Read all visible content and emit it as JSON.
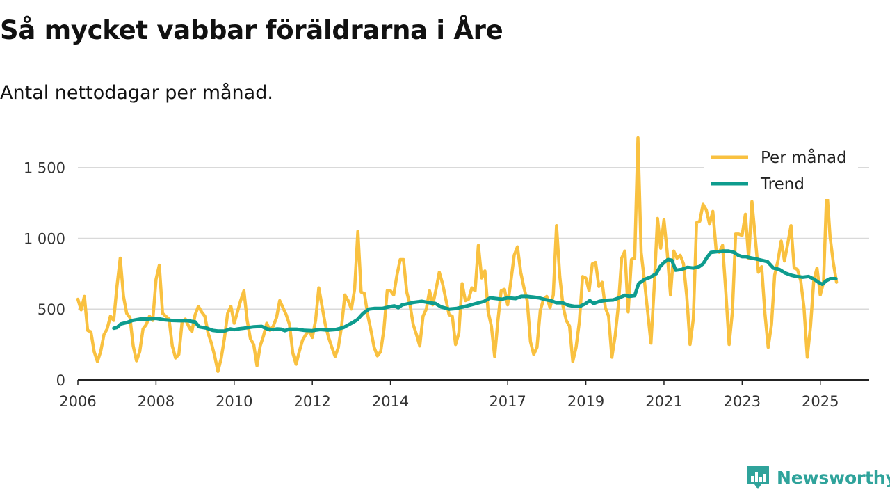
{
  "header": {
    "title": "Så mycket vabbar föräldrarna i Åre",
    "subtitle": "Antal nettodagar per månad."
  },
  "brand": {
    "name": "Newsworthy",
    "color": "#2fa39b"
  },
  "colors": {
    "per_month": "#f9c140",
    "trend": "#0e9c8e",
    "grid": "#d9d9d9",
    "axis": "#222222"
  },
  "chart_data": {
    "type": "line",
    "title": "Så mycket vabbar föräldrarna i Åre",
    "subtitle": "Antal nettodagar per månad.",
    "xlabel": "",
    "ylabel": "",
    "xlim": [
      2006.0,
      2026.25
    ],
    "ylim": [
      0,
      1700
    ],
    "x_ticks": [
      {
        "value": 2006,
        "label": "2006"
      },
      {
        "value": 2008,
        "label": "2008"
      },
      {
        "value": 2010,
        "label": "2010"
      },
      {
        "value": 2012,
        "label": "2012"
      },
      {
        "value": 2014,
        "label": "2014"
      },
      {
        "value": 2017,
        "label": "2017"
      },
      {
        "value": 2019,
        "label": "2019"
      },
      {
        "value": 2021,
        "label": "2021"
      },
      {
        "value": 2023,
        "label": "2023"
      },
      {
        "value": 2025,
        "label": "2025"
      }
    ],
    "y_ticks": [
      {
        "value": 0,
        "label": "0"
      },
      {
        "value": 500,
        "label": "500"
      },
      {
        "value": 1000,
        "label": "1 000"
      },
      {
        "value": 1500,
        "label": "1 500"
      }
    ],
    "grid": true,
    "legend_position": "top-right",
    "series": [
      {
        "name": "Per månad",
        "color": "#f9c140",
        "x_start": 2006.0,
        "step": 0.08333,
        "values": [
          570,
          495,
          590,
          350,
          340,
          200,
          130,
          200,
          320,
          360,
          450,
          420,
          660,
          860,
          590,
          470,
          440,
          240,
          135,
          200,
          360,
          390,
          450,
          420,
          710,
          810,
          470,
          450,
          430,
          240,
          155,
          180,
          410,
          430,
          380,
          340,
          460,
          520,
          480,
          450,
          330,
          260,
          170,
          60,
          150,
          290,
          470,
          520,
          400,
          480,
          560,
          630,
          420,
          290,
          250,
          100,
          240,
          310,
          400,
          350,
          380,
          440,
          560,
          510,
          460,
          390,
          190,
          110,
          200,
          280,
          320,
          350,
          300,
          420,
          650,
          520,
          390,
          300,
          230,
          165,
          230,
          380,
          600,
          560,
          500,
          640,
          1050,
          620,
          610,
          460,
          350,
          230,
          170,
          200,
          360,
          630,
          630,
          600,
          740,
          850,
          850,
          620,
          530,
          390,
          320,
          240,
          450,
          500,
          630,
          530,
          640,
          760,
          680,
          570,
          460,
          450,
          250,
          330,
          680,
          560,
          570,
          650,
          630,
          950,
          720,
          770,
          480,
          380,
          165,
          420,
          630,
          640,
          530,
          700,
          880,
          940,
          760,
          650,
          560,
          270,
          180,
          230,
          490,
          570,
          590,
          510,
          600,
          1090,
          730,
          520,
          420,
          380,
          130,
          230,
          410,
          730,
          720,
          630,
          820,
          830,
          660,
          690,
          510,
          450,
          160,
          310,
          530,
          860,
          910,
          480,
          850,
          860,
          1710,
          900,
          700,
          480,
          260,
          660,
          1140,
          930,
          1130,
          900,
          600,
          910,
          860,
          880,
          820,
          590,
          250,
          430,
          1110,
          1120,
          1240,
          1200,
          1100,
          1190,
          920,
          900,
          950,
          620,
          250,
          480,
          1030,
          1030,
          1020,
          1170,
          860,
          1260,
          1010,
          760,
          800,
          470,
          230,
          390,
          740,
          840,
          980,
          840,
          960,
          1090,
          790,
          780,
          700,
          510,
          160,
          380,
          700,
          790,
          600,
          690,
          1350,
          1010,
          830,
          690
        ]
      },
      {
        "name": "Trend",
        "color": "#0e9c8e",
        "points": [
          [
            2006.92,
            365
          ],
          [
            2007.0,
            370
          ],
          [
            2007.1,
            395
          ],
          [
            2007.25,
            405
          ],
          [
            2007.4,
            420
          ],
          [
            2007.6,
            430
          ],
          [
            2007.8,
            430
          ],
          [
            2008.0,
            435
          ],
          [
            2008.2,
            425
          ],
          [
            2008.4,
            420
          ],
          [
            2008.6,
            418
          ],
          [
            2008.8,
            418
          ],
          [
            2009.0,
            410
          ],
          [
            2009.1,
            375
          ],
          [
            2009.3,
            365
          ],
          [
            2009.45,
            350
          ],
          [
            2009.6,
            345
          ],
          [
            2009.75,
            345
          ],
          [
            2009.9,
            360
          ],
          [
            2010.0,
            355
          ],
          [
            2010.1,
            360
          ],
          [
            2010.25,
            365
          ],
          [
            2010.5,
            375
          ],
          [
            2010.7,
            378
          ],
          [
            2010.85,
            360
          ],
          [
            2011.0,
            355
          ],
          [
            2011.1,
            360
          ],
          [
            2011.2,
            358
          ],
          [
            2011.3,
            348
          ],
          [
            2011.4,
            358
          ],
          [
            2011.6,
            358
          ],
          [
            2011.8,
            350
          ],
          [
            2012.0,
            348
          ],
          [
            2012.2,
            356
          ],
          [
            2012.4,
            352
          ],
          [
            2012.6,
            356
          ],
          [
            2012.8,
            370
          ],
          [
            2013.0,
            400
          ],
          [
            2013.15,
            425
          ],
          [
            2013.3,
            470
          ],
          [
            2013.45,
            500
          ],
          [
            2013.6,
            505
          ],
          [
            2013.8,
            505
          ],
          [
            2014.0,
            518
          ],
          [
            2014.1,
            523
          ],
          [
            2014.2,
            510
          ],
          [
            2014.3,
            530
          ],
          [
            2014.4,
            535
          ],
          [
            2014.6,
            548
          ],
          [
            2014.8,
            555
          ],
          [
            2015.0,
            545
          ],
          [
            2015.15,
            540
          ],
          [
            2015.3,
            515
          ],
          [
            2015.5,
            500
          ],
          [
            2015.7,
            505
          ],
          [
            2015.85,
            515
          ],
          [
            2016.0,
            525
          ],
          [
            2016.2,
            540
          ],
          [
            2016.4,
            555
          ],
          [
            2016.55,
            580
          ],
          [
            2016.7,
            575
          ],
          [
            2016.85,
            570
          ],
          [
            2017.0,
            580
          ],
          [
            2017.2,
            575
          ],
          [
            2017.35,
            590
          ],
          [
            2017.5,
            590
          ],
          [
            2017.65,
            585
          ],
          [
            2017.8,
            580
          ],
          [
            2017.95,
            568
          ],
          [
            2018.1,
            560
          ],
          [
            2018.25,
            545
          ],
          [
            2018.4,
            545
          ],
          [
            2018.55,
            527
          ],
          [
            2018.7,
            520
          ],
          [
            2018.85,
            520
          ],
          [
            2019.0,
            540
          ],
          [
            2019.1,
            560
          ],
          [
            2019.2,
            540
          ],
          [
            2019.35,
            555
          ],
          [
            2019.5,
            562
          ],
          [
            2019.7,
            565
          ],
          [
            2019.85,
            580
          ],
          [
            2020.0,
            598
          ],
          [
            2020.1,
            590
          ],
          [
            2020.25,
            595
          ],
          [
            2020.35,
            680
          ],
          [
            2020.5,
            710
          ],
          [
            2020.65,
            725
          ],
          [
            2020.8,
            750
          ],
          [
            2020.9,
            800
          ],
          [
            2021.0,
            830
          ],
          [
            2021.1,
            850
          ],
          [
            2021.2,
            845
          ],
          [
            2021.3,
            775
          ],
          [
            2021.45,
            780
          ],
          [
            2021.6,
            795
          ],
          [
            2021.75,
            790
          ],
          [
            2021.9,
            800
          ],
          [
            2022.0,
            820
          ],
          [
            2022.1,
            865
          ],
          [
            2022.2,
            900
          ],
          [
            2022.35,
            905
          ],
          [
            2022.5,
            910
          ],
          [
            2022.65,
            910
          ],
          [
            2022.8,
            900
          ],
          [
            2022.9,
            880
          ],
          [
            2023.0,
            870
          ],
          [
            2023.1,
            870
          ],
          [
            2023.25,
            860
          ],
          [
            2023.35,
            855
          ],
          [
            2023.5,
            845
          ],
          [
            2023.65,
            835
          ],
          [
            2023.8,
            790
          ],
          [
            2023.95,
            780
          ],
          [
            2024.1,
            755
          ],
          [
            2024.25,
            740
          ],
          [
            2024.4,
            730
          ],
          [
            2024.55,
            725
          ],
          [
            2024.7,
            730
          ],
          [
            2024.85,
            710
          ],
          [
            2024.95,
            690
          ],
          [
            2025.05,
            675
          ],
          [
            2025.15,
            700
          ],
          [
            2025.25,
            715
          ],
          [
            2025.4,
            715
          ]
        ]
      }
    ]
  }
}
